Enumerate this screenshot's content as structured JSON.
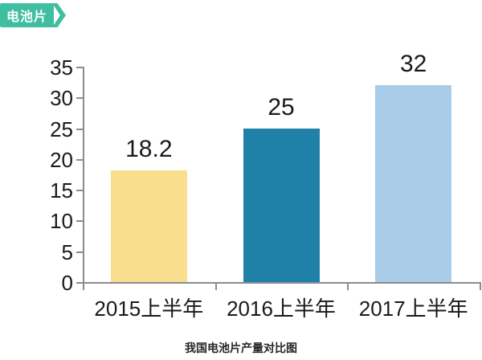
{
  "tag": {
    "label": "电池片",
    "bg_color": "#3fbea0",
    "text_color": "#ffffff"
  },
  "caption": "我国电池片产量对比图",
  "chart_data": {
    "type": "bar",
    "title": "我国电池片产量对比图",
    "categories": [
      "2015上半年",
      "2016上半年",
      "2017上半年"
    ],
    "values": [
      18.2,
      25,
      32
    ],
    "value_labels": [
      "18.2",
      "25",
      "32"
    ],
    "bar_colors": [
      "#f9df8d",
      "#1f80a8",
      "#a9cce9"
    ],
    "xlabel": "",
    "ylabel": "",
    "ylim": [
      0,
      35
    ],
    "yticks": [
      0,
      5,
      10,
      15,
      20,
      25,
      30,
      35
    ],
    "grid": false,
    "legend": "none",
    "axis_color": "#8c8c8c",
    "label_color": "#1a1a1a"
  }
}
